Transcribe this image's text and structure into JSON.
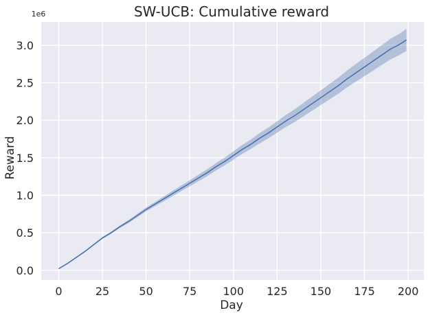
{
  "chart_data": {
    "type": "line",
    "title": "SW-UCB: Cumulative reward",
    "xlabel": "Day",
    "ylabel": "Reward",
    "y_scale_label": "1e6",
    "y_scale_factor": 1000000,
    "xlim": [
      -10,
      209
    ],
    "ylim": [
      -130000,
      3310000
    ],
    "xticks": [
      0,
      25,
      50,
      75,
      100,
      125,
      150,
      175,
      200
    ],
    "yticks": [
      0,
      500000,
      1000000,
      1500000,
      2000000,
      2500000,
      3000000
    ],
    "ytick_labels": [
      "0.0",
      "0.5",
      "1.0",
      "1.5",
      "2.0",
      "2.5",
      "3.0"
    ],
    "grid": true,
    "colors": {
      "line": "#4c72b0",
      "band": "#4c72b0",
      "background": "#eaeaf2",
      "grid": "#ffffff"
    },
    "series": [
      {
        "x": [
          0,
          5,
          10,
          15,
          20,
          25,
          30,
          35,
          40,
          45,
          50,
          55,
          60,
          65,
          70,
          75,
          80,
          85,
          90,
          95,
          100,
          105,
          110,
          115,
          120,
          125,
          130,
          135,
          140,
          145,
          150,
          155,
          160,
          165,
          170,
          175,
          180,
          185,
          190,
          195,
          199
        ],
        "y": [
          20000,
          90000,
          170000,
          250000,
          340000,
          430000,
          500000,
          580000,
          650000,
          730000,
          810000,
          880000,
          950000,
          1020000,
          1090000,
          1160000,
          1230000,
          1300000,
          1380000,
          1450000,
          1530000,
          1610000,
          1680000,
          1760000,
          1830000,
          1910000,
          1990000,
          2060000,
          2140000,
          2220000,
          2300000,
          2380000,
          2460000,
          2550000,
          2630000,
          2710000,
          2790000,
          2870000,
          2950000,
          3010000,
          3070000
        ],
        "lower": [
          20000,
          88000,
          165000,
          243000,
          330000,
          418000,
          486000,
          563000,
          630000,
          707000,
          785000,
          852000,
          918000,
          985000,
          1052000,
          1120000,
          1186000,
          1254000,
          1330000,
          1398000,
          1473000,
          1550000,
          1617000,
          1692000,
          1759000,
          1834000,
          1910000,
          1975000,
          2050000,
          2126000,
          2202000,
          2277000,
          2353000,
          2437000,
          2512000,
          2588000,
          2663000,
          2738000,
          2813000,
          2868000,
          2922000
        ],
        "upper": [
          20000,
          92000,
          175000,
          257000,
          350000,
          442000,
          514000,
          597000,
          670000,
          753000,
          835000,
          908000,
          982000,
          1055000,
          1128000,
          1200000,
          1274000,
          1346000,
          1430000,
          1502000,
          1587000,
          1670000,
          1743000,
          1828000,
          1901000,
          1986000,
          2070000,
          2145000,
          2230000,
          2314000,
          2398000,
          2483000,
          2567000,
          2663000,
          2748000,
          2832000,
          2917000,
          3002000,
          3087000,
          3152000,
          3218000
        ]
      }
    ]
  }
}
